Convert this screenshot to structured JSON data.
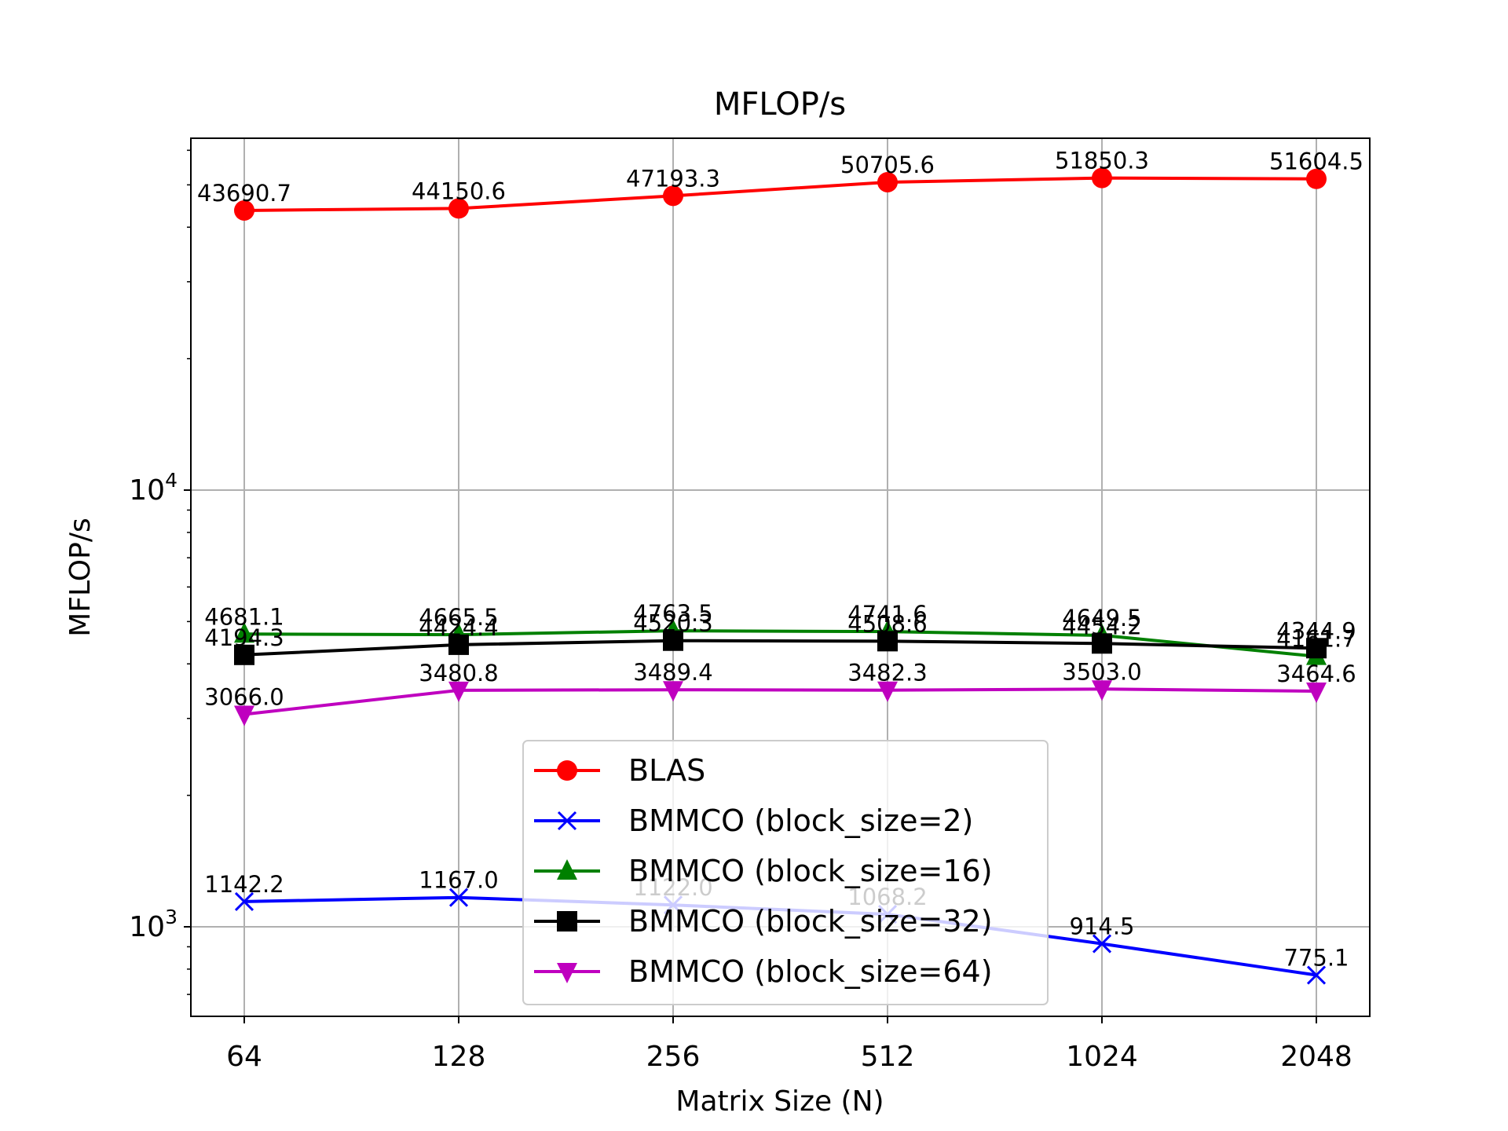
{
  "chart_data": {
    "type": "line",
    "title": "MFLOP/s",
    "xlabel": "Matrix Size (N)",
    "ylabel": "MFLOP/s",
    "x_categories": [
      "64",
      "128",
      "256",
      "512",
      "1024",
      "2048"
    ],
    "y_scale": "log",
    "ylim": [
      600,
      70000
    ],
    "y_ticks": [
      {
        "value": 1000,
        "base": "10",
        "exp": "3"
      },
      {
        "value": 10000,
        "base": "10",
        "exp": "4"
      }
    ],
    "grid": true,
    "legend_position": "lower center",
    "series": [
      {
        "name": "BLAS",
        "color": "#ff0000",
        "marker": "circle",
        "values": [
          43690.7,
          44150.6,
          47193.3,
          50705.6,
          51850.3,
          51604.5
        ],
        "labels": [
          "43690.7",
          "44150.6",
          "47193.3",
          "50705.6",
          "51850.3",
          "51604.5"
        ]
      },
      {
        "name": "BMMCO (block_size=2)",
        "color": "#0000ff",
        "marker": "x",
        "values": [
          1142.2,
          1167.0,
          1122.0,
          1068.2,
          914.5,
          775.1
        ],
        "labels": [
          "1142.2",
          "1167.0",
          "1122.0",
          "1068.2",
          "914.5",
          "775.1"
        ]
      },
      {
        "name": "BMMCO (block_size=16)",
        "color": "#008000",
        "marker": "triangle-up",
        "values": [
          4681.1,
          4665.5,
          4763.5,
          4741.6,
          4649.5,
          4161.7
        ],
        "labels": [
          "4681.1",
          "4665.5",
          "4763.5",
          "4741.6",
          "4649.5",
          "4161.7"
        ]
      },
      {
        "name": "BMMCO (block_size=32)",
        "color": "#000000",
        "marker": "square",
        "values": [
          4194.3,
          4424.4,
          4520.3,
          4508.6,
          4454.2,
          4344.9
        ],
        "labels": [
          "4194.3",
          "4424.4",
          "4520.3",
          "4508.6",
          "4454.2",
          "4344.9"
        ]
      },
      {
        "name": "BMMCO (block_size=64)",
        "color": "#bf00bf",
        "marker": "triangle-down",
        "values": [
          3066.0,
          3480.8,
          3489.4,
          3482.3,
          3503.0,
          3464.6
        ],
        "labels": [
          "3066.0",
          "3480.8",
          "3489.4",
          "3482.3",
          "3503.0",
          "3464.6"
        ]
      }
    ]
  }
}
